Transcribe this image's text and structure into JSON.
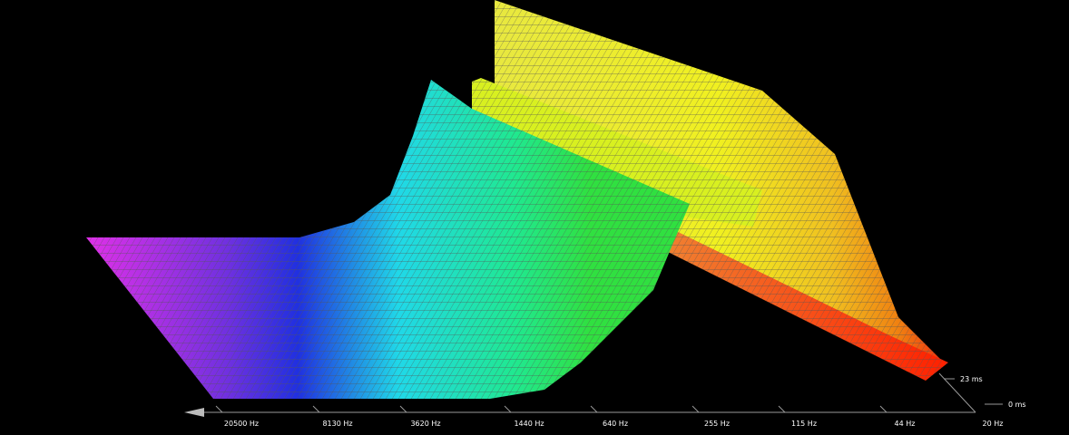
{
  "frequency_axis": {
    "labels": [
      "20500 Hz",
      "8130 Hz",
      "3620 Hz",
      "1440 Hz",
      "640 Hz",
      "255 Hz",
      "115 Hz",
      "44 Hz",
      "20 Hz"
    ]
  },
  "time_axis": {
    "labels": [
      "23 ms",
      "0 ms"
    ]
  }
}
